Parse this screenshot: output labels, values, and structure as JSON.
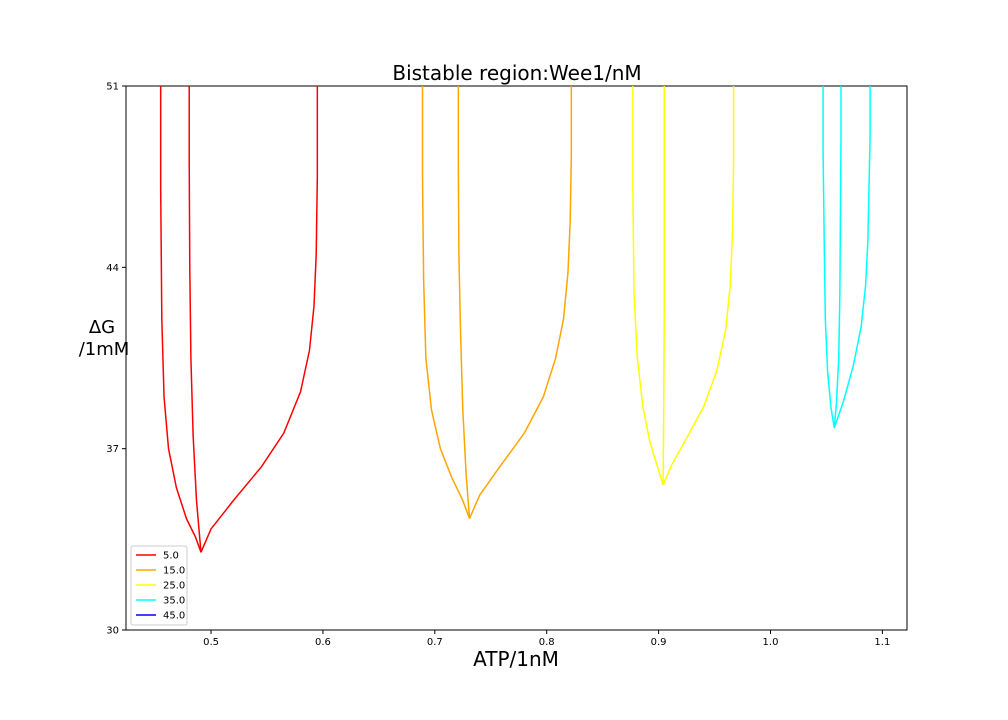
{
  "chart_data": {
    "type": "line",
    "title": "Bistable region:Wee1/nM",
    "xlabel": "ATP/1nM",
    "ylabel_line1": "ΔG",
    "ylabel_line2": "/1mM",
    "xlim": [
      0.424,
      1.122
    ],
    "ylim": [
      30,
      51
    ],
    "xticks": [
      0.5,
      0.6,
      0.7,
      0.8,
      0.9,
      1.0,
      1.1
    ],
    "xtick_labels": [
      "0.5",
      "0.6",
      "0.7",
      "0.8",
      "0.9",
      "1.0",
      "1.1"
    ],
    "yticks": [
      30,
      37,
      44,
      51
    ],
    "ytick_labels": [
      "30",
      "37",
      "44",
      "51"
    ],
    "grid": false,
    "legend_position": "lower-left",
    "series": [
      {
        "name": "5.0",
        "color": "#ff0000",
        "branches": [
          {
            "x": [
              0.491,
              0.486,
              0.478,
              0.469,
              0.462,
              0.458,
              0.456,
              0.455,
              0.455
            ],
            "y": [
              33.0,
              33.6,
              34.3,
              35.5,
              37.0,
              39.0,
              42.0,
              47.0,
              51.0
            ]
          },
          {
            "x": [
              0.491,
              0.487,
              0.484,
              0.482,
              0.481,
              0.4805,
              0.4805
            ],
            "y": [
              33.0,
              35.0,
              37.5,
              40.5,
              44.0,
              48.0,
              51.0
            ]
          },
          {
            "x": [
              0.491,
              0.5,
              0.52,
              0.545,
              0.565,
              0.58,
              0.588,
              0.592,
              0.594,
              0.595,
              0.595
            ],
            "y": [
              33.0,
              33.9,
              35.0,
              36.3,
              37.6,
              39.2,
              40.8,
              42.5,
              44.5,
              47.5,
              51.0
            ]
          }
        ]
      },
      {
        "name": "15.0",
        "color": "#ffa500",
        "branches": [
          {
            "x": [
              0.731,
              0.725,
              0.715,
              0.705,
              0.697,
              0.692,
              0.69,
              0.689,
              0.689
            ],
            "y": [
              34.3,
              35.0,
              35.9,
              37.0,
              38.5,
              40.5,
              43.5,
              47.5,
              51.0
            ]
          },
          {
            "x": [
              0.731,
              0.728,
              0.725,
              0.723,
              0.7215,
              0.721,
              0.721
            ],
            "y": [
              34.3,
              36.0,
              38.5,
              41.5,
              44.5,
              48.0,
              51.0
            ]
          },
          {
            "x": [
              0.731,
              0.74,
              0.758,
              0.78,
              0.797,
              0.808,
              0.815,
              0.819,
              0.821,
              0.822,
              0.822
            ],
            "y": [
              34.3,
              35.2,
              36.3,
              37.6,
              39.0,
              40.5,
              42.0,
              43.8,
              45.8,
              48.3,
              51.0
            ]
          }
        ]
      },
      {
        "name": "25.0",
        "color": "#ffff00",
        "branches": [
          {
            "x": [
              0.904,
              0.899,
              0.892,
              0.886,
              0.881,
              0.878,
              0.877,
              0.877
            ],
            "y": [
              35.6,
              36.3,
              37.3,
              38.6,
              40.5,
              43.0,
              47.0,
              51.0
            ]
          },
          {
            "x": [
              0.904,
              0.9045,
              0.905,
              0.905,
              0.905
            ],
            "y": [
              35.6,
              38.0,
              42.0,
              46.5,
              51.0
            ]
          },
          {
            "x": [
              0.904,
              0.912,
              0.925,
              0.94,
              0.952,
              0.96,
              0.964,
              0.966,
              0.967,
              0.967
            ],
            "y": [
              35.6,
              36.4,
              37.4,
              38.6,
              40.0,
              41.6,
              43.3,
              45.3,
              48.0,
              51.0
            ]
          }
        ]
      },
      {
        "name": "35.0",
        "color": "#00ffff",
        "branches": [
          {
            "x": [
              1.057,
              1.054,
              1.051,
              1.049,
              1.048,
              1.047,
              1.047
            ],
            "y": [
              37.8,
              38.6,
              40.0,
              42.0,
              45.0,
              48.5,
              51.0
            ]
          },
          {
            "x": [
              1.057,
              1.059,
              1.061,
              1.062,
              1.0625,
              1.063,
              1.063
            ],
            "y": [
              37.8,
              38.8,
              40.5,
              43.0,
              46.0,
              49.0,
              51.0
            ]
          },
          {
            "x": [
              1.057,
              1.065,
              1.074,
              1.081,
              1.085,
              1.087,
              1.088,
              1.089,
              1.089
            ],
            "y": [
              37.8,
              38.8,
              40.2,
              41.7,
              43.3,
              45.0,
              47.0,
              49.0,
              51.0
            ]
          }
        ]
      },
      {
        "name": "45.0",
        "color": "#0000ff",
        "branches": []
      }
    ]
  }
}
